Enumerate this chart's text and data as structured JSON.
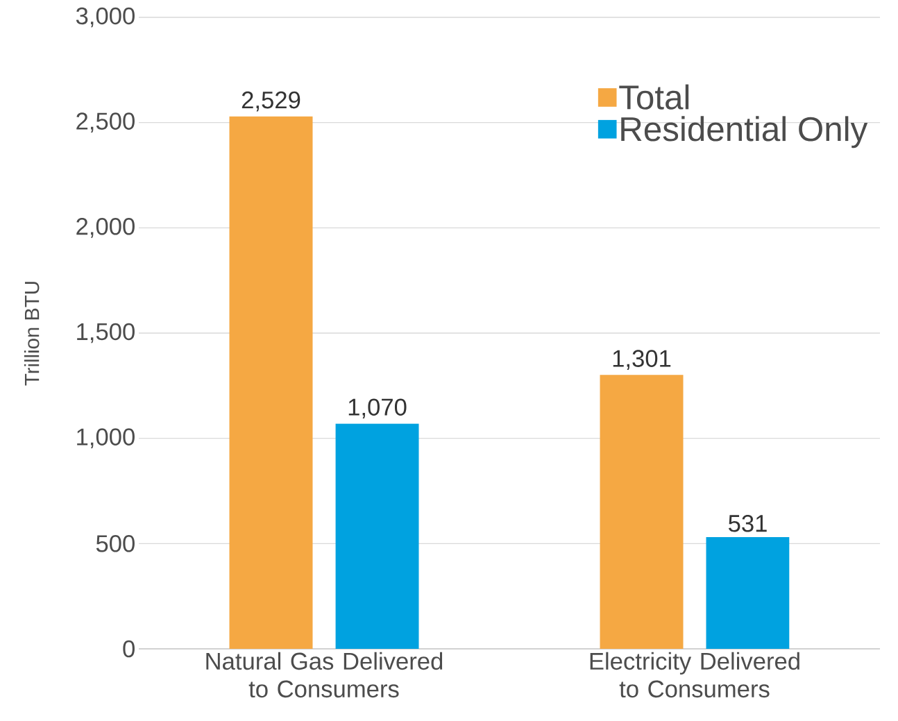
{
  "chart_data": {
    "type": "bar",
    "categories": [
      "Natural Gas Delivered to Consumers",
      "Electricity Delivered to Consumers"
    ],
    "series": [
      {
        "name": "Total",
        "color": "#f5a843",
        "values": [
          2529,
          1301
        ],
        "value_labels": [
          "2,529",
          "1,301"
        ]
      },
      {
        "name": "Residential Only",
        "color": "#00a2e0",
        "values": [
          1070,
          531
        ],
        "value_labels": [
          "1,070",
          "531"
        ]
      }
    ],
    "ylabel": "Trillion BTU",
    "ylim": [
      0,
      3000
    ],
    "yticks": [
      0,
      500,
      {
        "value": 1000,
        "label": "1,000"
      },
      {
        "value": 1500,
        "label": "1,500"
      },
      {
        "value": 2000,
        "label": "2,000"
      },
      {
        "value": 2500,
        "label": "2,500"
      },
      {
        "value": 3000,
        "label": "3,000"
      }
    ],
    "grid": "y",
    "legend": "top right"
  }
}
